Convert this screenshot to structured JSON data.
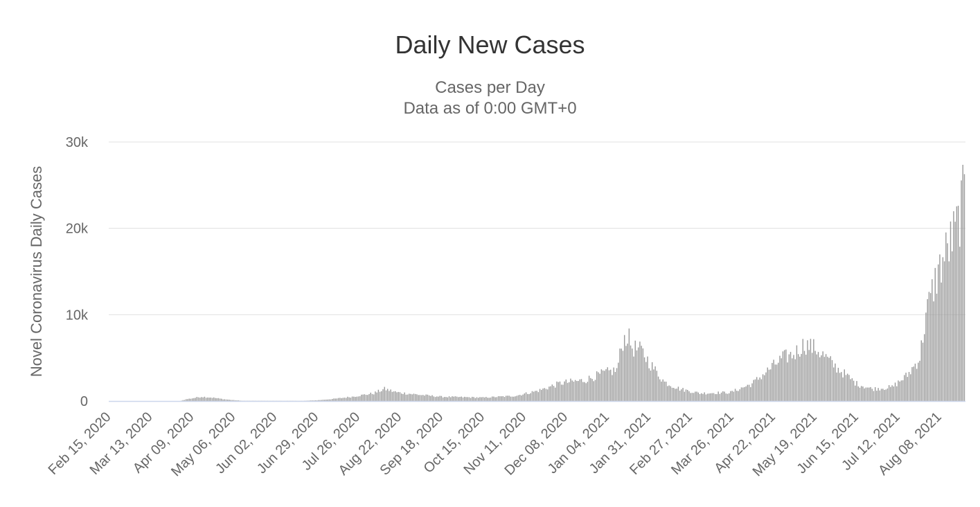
{
  "title": "Daily New Cases",
  "subtitle": "Cases per Day",
  "subtitle2": "Data as of 0:00 GMT+0",
  "colors": {
    "bar": "#999999",
    "grid": "#e0e0e0",
    "axis": "#ccd6eb",
    "text": "#666666"
  },
  "chart_data": {
    "type": "bar",
    "title": "Daily New Cases",
    "subtitle": "Cases per Day",
    "ylabel": "Novel Coronavirus Daily Cases",
    "xlabel": "",
    "ylim": [
      0,
      30000
    ],
    "y_ticks": [
      0,
      10000,
      20000,
      30000
    ],
    "y_tick_labels": [
      "0",
      "10k",
      "20k",
      "30k"
    ],
    "x_tick_labels": [
      "Feb 15, 2020",
      "Mar 13, 2020",
      "Apr 09, 2020",
      "May 06, 2020",
      "Jun 02, 2020",
      "Jun 29, 2020",
      "Jul 26, 2020",
      "Aug 22, 2020",
      "Sep 18, 2020",
      "Oct 15, 2020",
      "Nov 11, 2020",
      "Dec 08, 2020",
      "Jan 04, 2021",
      "Jan 31, 2021",
      "Feb 27, 2021",
      "Mar 26, 2021",
      "Apr 22, 2021",
      "May 19, 2021",
      "Jun 15, 2021",
      "Jul 12, 2021",
      "Aug 08, 2021"
    ],
    "grid": true,
    "legend": "none",
    "x_start": "Feb 15, 2020",
    "x_end": "Aug 24, 2021",
    "series": [
      {
        "knots": [
          [
            "Feb 15, 2020",
            0
          ],
          [
            "Apr 01, 2020",
            0
          ],
          [
            "Apr 05, 2020",
            200
          ],
          [
            "Apr 15, 2020",
            500
          ],
          [
            "Apr 22, 2020",
            400
          ],
          [
            "Apr 30, 2020",
            200
          ],
          [
            "May 06, 2020",
            100
          ],
          [
            "May 12, 2020",
            30
          ],
          [
            "Jun 20, 2020",
            20
          ],
          [
            "Jun 30, 2020",
            100
          ],
          [
            "Jul 10, 2020",
            250
          ],
          [
            "Jul 22, 2020",
            500
          ],
          [
            "Aug 05, 2020",
            900
          ],
          [
            "Aug 12, 2020",
            1400
          ],
          [
            "Aug 20, 2020",
            1000
          ],
          [
            "Sep 05, 2020",
            700
          ],
          [
            "Sep 18, 2020",
            500
          ],
          [
            "Oct 15, 2020",
            400
          ],
          [
            "Nov 05, 2020",
            600
          ],
          [
            "Nov 20, 2020",
            1200
          ],
          [
            "Dec 05, 2020",
            2100
          ],
          [
            "Dec 20, 2020",
            2400
          ],
          [
            "Jan 01, 2021",
            3200
          ],
          [
            "Jan 10, 2021",
            3600
          ],
          [
            "Jan 14, 2021",
            7000
          ],
          [
            "Jan 17, 2021",
            7600
          ],
          [
            "Jan 20, 2021",
            6200
          ],
          [
            "Jan 26, 2021",
            5800
          ],
          [
            "Feb 02, 2021",
            4000
          ],
          [
            "Feb 10, 2021",
            2200
          ],
          [
            "Feb 20, 2021",
            1400
          ],
          [
            "Mar 05, 2021",
            900
          ],
          [
            "Mar 25, 2021",
            1000
          ],
          [
            "Apr 08, 2021",
            2000
          ],
          [
            "Apr 20, 2021",
            3800
          ],
          [
            "Apr 28, 2021",
            5000
          ],
          [
            "May 05, 2021",
            5400
          ],
          [
            "May 12, 2021",
            6600
          ],
          [
            "May 20, 2021",
            6000
          ],
          [
            "Jun 01, 2021",
            4000
          ],
          [
            "Jun 15, 2021",
            2000
          ],
          [
            "Jun 25, 2021",
            1400
          ],
          [
            "Jul 08, 2021",
            1600
          ],
          [
            "Jul 18, 2021",
            3000
          ],
          [
            "Jul 26, 2021",
            5000
          ],
          [
            "Jul 30, 2021",
            10000
          ],
          [
            "Aug 06, 2021",
            14500
          ],
          [
            "Aug 14, 2021",
            18000
          ],
          [
            "Aug 19, 2021",
            20000
          ],
          [
            "Aug 24, 2021",
            24000
          ]
        ]
      }
    ]
  }
}
